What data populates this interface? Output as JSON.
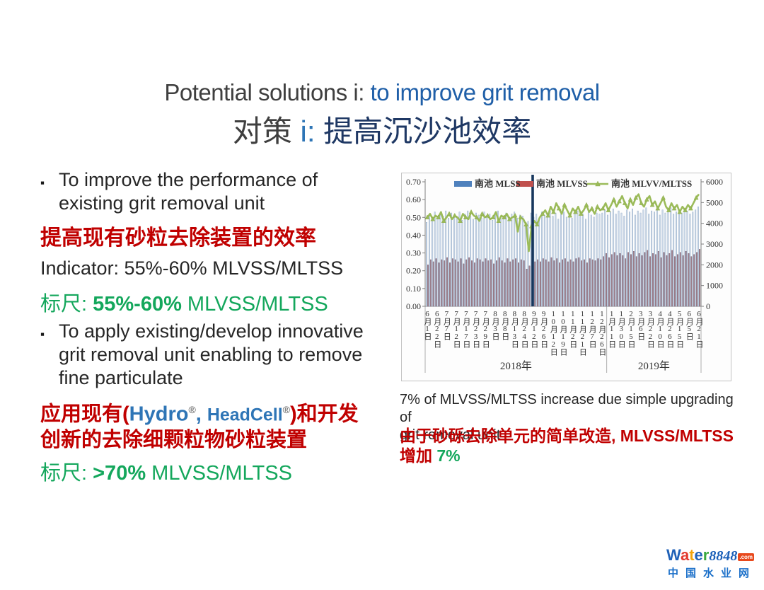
{
  "slide_title": {
    "line1": [
      {
        "text": "Potential solutions i: ",
        "color": "#3f3f3f"
      },
      {
        "text": "to improve grit removal",
        "color": "#1f5fa8"
      }
    ],
    "line2": [
      {
        "text": "对策",
        "color": "#3f3f3f"
      },
      {
        "text": " i: ",
        "color": "#2e75b6"
      },
      {
        "text": "提高沉沙池效率",
        "color": "#1f3864"
      }
    ]
  },
  "left_panel": {
    "bullet_glyph": "▪",
    "bullet1_lines": [
      "To improve the performance of",
      "existing grit removal unit"
    ],
    "red1": "提高现有砂粒去除装置的效率",
    "indicator": "Indicator: 55%-60% MLVSS/MLTSS",
    "target1": [
      {
        "text": "标尺: ",
        "color": "#14a75c"
      },
      {
        "text": "55%-60%",
        "color": "#14a75c",
        "bold": true
      },
      {
        "text": " MLVSS/MLTSS",
        "color": "#14a75c"
      }
    ],
    "bullet2_lines": [
      "To apply existing/develop innovative",
      "grit removal unit enabling to remove",
      "fine particulate"
    ],
    "red2_line1": [
      {
        "text": "应用现有(",
        "color": "#c00000",
        "bold": true
      },
      {
        "text": "Hydro",
        "color": "#2e75b6"
      },
      {
        "text": "®",
        "color": "#555555",
        "sup": true
      },
      {
        "text": ", ",
        "color": "#2e75b6"
      },
      {
        "text": "HeadCell",
        "color": "#2e75b6",
        "small": true
      },
      {
        "text": "®",
        "color": "#555555",
        "sup": true
      },
      {
        "text": ")和开发",
        "color": "#c00000",
        "bold": true
      }
    ],
    "red2_line2": "创新的去除细颗粒物砂粒装置",
    "target2": [
      {
        "text": "标尺: ",
        "color": "#14a75c"
      },
      {
        "text": ">70%",
        "color": "#14a75c",
        "bold": true
      },
      {
        "text": " MLVSS/MLTSS",
        "color": "#14a75c"
      }
    ]
  },
  "caption": {
    "en_lines": [
      "7% of MLVSS/MLTSS increase due simple upgrading of",
      "grit removal unit"
    ],
    "zh_line1": "由于砂砾去除单元的简单改造, MLVSS/MLTSS",
    "zh_line2": [
      {
        "text": "增加 ",
        "color": "#c00000",
        "bold": true
      },
      {
        "text": "7%",
        "color": "#14a75c",
        "bold": true
      }
    ]
  },
  "chart_data": {
    "type": "bar",
    "subtype": "combo-bars-plus-line",
    "legend": [
      "南池 MLSS",
      "南池 MLVSS",
      "南池 MLVV/MLTSS"
    ],
    "legend_colors": {
      "mlss": "#4f81bd",
      "mlvss": "#c0504d",
      "ratio": "#9bbb59"
    },
    "left_axis": {
      "min": 0.0,
      "max": 0.7,
      "step": 0.1,
      "ticks": [
        "0.70",
        "0.60",
        "0.50",
        "0.40",
        "0.30",
        "0.20",
        "0.10",
        "0.00"
      ]
    },
    "right_axis": {
      "min": 0,
      "max": 6000,
      "step": 1000,
      "ticks": [
        "6000",
        "5000",
        "4000",
        "3000",
        "2000",
        "1000",
        "0"
      ]
    },
    "x_tick_labels": [
      "6月1日",
      "6月22日",
      "7月7日",
      "7月12日",
      "7月17日",
      "7月23日",
      "7月29日",
      "8月3日",
      "8月8日",
      "8月13日",
      "8月24日",
      "9月12日",
      "9月26日",
      "10月12日",
      "10月19日",
      "11月2日",
      "11月21日",
      "12月7日",
      "12月26日",
      "1月11日",
      "1月30日",
      "2月15日",
      "3月6日",
      "3月22日",
      "4月10日",
      "4月26日",
      "5月15日",
      "6月5日",
      "6月21日"
    ],
    "x_group_labels": [
      "2018年",
      "2019年"
    ],
    "year_divider_after_label_index": 18,
    "event_line_fraction": 0.388,
    "event_line_color": "#17375d",
    "bar_fill_mlss": "#ccd9e8",
    "bar_stroke_mlss": "#8ca6c4",
    "bar_fill_mlvss": "#a2838f",
    "bar_stroke_mlvss": "#7c5f6e",
    "series": [
      {
        "name": "南池 MLSS",
        "axis": "right",
        "type": "bar",
        "values": [
          4050,
          4400,
          4300,
          4550,
          4200,
          4450,
          4350,
          4600,
          4250,
          4500,
          4400,
          4300,
          4550,
          4150,
          4450,
          4600,
          4350,
          4200,
          4500,
          4400,
          4250,
          4550,
          4300,
          4450,
          4150,
          4400,
          4600,
          4350,
          4200,
          4500,
          4300,
          4450,
          4550,
          4250,
          4400,
          4350,
          3900,
          4100,
          4500,
          4300,
          4450,
          4250,
          4550,
          4400,
          4300,
          4600,
          4350,
          4500,
          4200,
          4450,
          4550,
          4300,
          4400,
          4250,
          4500,
          4600,
          4350,
          4450,
          4200,
          4550,
          4400,
          4300,
          4500,
          4450,
          4500,
          4650,
          4400,
          4550,
          4700,
          4450,
          4600,
          4500,
          4350,
          4650,
          4550,
          4700,
          4400,
          4600,
          4500,
          4650,
          4750,
          4450,
          4600,
          4550,
          4700,
          4400,
          4650,
          4500,
          4600,
          4750,
          4450,
          4550,
          4650,
          4500,
          4700,
          4600,
          4450,
          4550,
          4650,
          4800
        ]
      },
      {
        "name": "南池 MLVSS",
        "axis": "right",
        "type": "bar",
        "values": [
          2000,
          2250,
          2150,
          2300,
          2100,
          2250,
          2200,
          2350,
          2100,
          2300,
          2250,
          2150,
          2300,
          2050,
          2250,
          2350,
          2200,
          2100,
          2300,
          2250,
          2150,
          2300,
          2200,
          2250,
          2050,
          2200,
          2350,
          2200,
          2100,
          2300,
          2150,
          2250,
          2300,
          2100,
          2250,
          2200,
          1800,
          1950,
          2250,
          2150,
          2250,
          2150,
          2300,
          2250,
          2150,
          2350,
          2200,
          2300,
          2100,
          2250,
          2300,
          2150,
          2250,
          2150,
          2300,
          2350,
          2200,
          2250,
          2100,
          2300,
          2250,
          2200,
          2300,
          2250,
          2400,
          2550,
          2350,
          2500,
          2600,
          2450,
          2550,
          2450,
          2300,
          2600,
          2500,
          2650,
          2400,
          2550,
          2450,
          2600,
          2700,
          2400,
          2550,
          2500,
          2650,
          2350,
          2600,
          2450,
          2550,
          2700,
          2400,
          2500,
          2600,
          2450,
          2650,
          2550,
          2400,
          2500,
          2600,
          2750
        ]
      },
      {
        "name": "南池 MLVV/MLTSS",
        "axis": "left",
        "type": "line",
        "values": [
          0.5,
          0.52,
          0.49,
          0.51,
          0.5,
          0.53,
          0.48,
          0.5,
          0.52,
          0.49,
          0.51,
          0.5,
          0.48,
          0.52,
          0.5,
          0.49,
          0.53,
          0.51,
          0.5,
          0.48,
          0.52,
          0.5,
          0.51,
          0.49,
          0.5,
          0.53,
          0.48,
          0.51,
          0.5,
          0.52,
          0.49,
          0.5,
          0.51,
          0.42,
          0.5,
          0.49,
          0.46,
          0.31,
          0.45,
          0.48,
          0.46,
          0.5,
          0.52,
          0.54,
          0.51,
          0.56,
          0.53,
          0.58,
          0.55,
          0.52,
          0.57,
          0.54,
          0.51,
          0.55,
          0.53,
          0.56,
          0.52,
          0.54,
          0.57,
          0.53,
          0.55,
          0.52,
          0.56,
          0.54,
          0.55,
          0.58,
          0.54,
          0.57,
          0.6,
          0.56,
          0.59,
          0.62,
          0.58,
          0.55,
          0.6,
          0.57,
          0.61,
          0.63,
          0.58,
          0.56,
          0.6,
          0.62,
          0.57,
          0.59,
          0.55,
          0.58,
          0.61,
          0.56,
          0.54,
          0.58,
          0.55,
          0.57,
          0.53,
          0.56,
          0.54,
          0.57,
          0.55,
          0.58,
          0.61,
          0.63
        ]
      }
    ]
  },
  "watermark": {
    "letters": [
      {
        "text": "W",
        "color": "#2062b8"
      },
      {
        "text": "a",
        "color": "#e23a2e"
      },
      {
        "text": "t",
        "color": "#f2a50c"
      },
      {
        "text": "e",
        "color": "#2062b8"
      },
      {
        "text": "r",
        "color": "#3ba93f"
      }
    ],
    "number": "8848",
    "tld": ".com",
    "subtitle": "中国水业网"
  }
}
